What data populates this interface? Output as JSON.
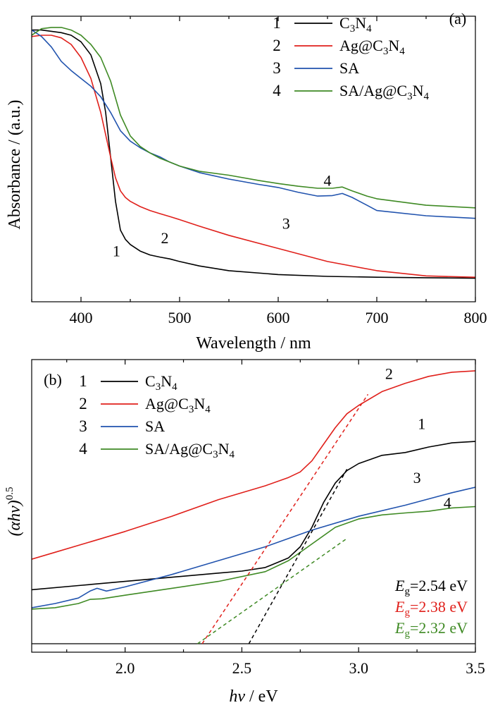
{
  "chart_data": [
    {
      "type": "line",
      "panel_label": "(a)",
      "xlabel": "Wavelength / nm",
      "ylabel": "Absorbance / (a.u.)",
      "xlim": [
        350,
        800
      ],
      "ylim": [
        0,
        1
      ],
      "xticks": [
        400,
        500,
        600,
        700,
        800
      ],
      "yticks_shown": false,
      "legend_position": "top-right",
      "series": [
        {
          "id": "1",
          "name": "C3N4",
          "color": "#000000",
          "x": [
            350,
            360,
            370,
            380,
            390,
            400,
            410,
            420,
            425,
            430,
            435,
            440,
            445,
            450,
            460,
            470,
            480,
            490,
            500,
            520,
            550,
            600,
            650,
            700,
            750,
            800
          ],
          "y": [
            0.985,
            0.985,
            0.98,
            0.975,
            0.965,
            0.94,
            0.89,
            0.78,
            0.67,
            0.5,
            0.33,
            0.22,
            0.185,
            0.165,
            0.14,
            0.125,
            0.117,
            0.11,
            0.1,
            0.083,
            0.065,
            0.05,
            0.043,
            0.04,
            0.038,
            0.036
          ]
        },
        {
          "id": "2",
          "name": "Ag@C3N4",
          "color": "#e0201b",
          "x": [
            350,
            360,
            370,
            380,
            390,
            400,
            410,
            420,
            430,
            435,
            440,
            445,
            450,
            460,
            470,
            480,
            490,
            500,
            520,
            550,
            600,
            650,
            700,
            750,
            800
          ],
          "y": [
            0.96,
            0.965,
            0.965,
            0.955,
            0.93,
            0.88,
            0.8,
            0.67,
            0.5,
            0.42,
            0.37,
            0.345,
            0.33,
            0.31,
            0.295,
            0.283,
            0.272,
            0.26,
            0.235,
            0.2,
            0.15,
            0.1,
            0.065,
            0.045,
            0.04
          ]
        },
        {
          "id": "3",
          "name": "SA",
          "color": "#2153ae",
          "x": [
            350,
            360,
            370,
            380,
            390,
            400,
            410,
            420,
            430,
            440,
            450,
            460,
            470,
            480,
            490,
            500,
            520,
            550,
            580,
            600,
            620,
            640,
            655,
            665,
            675,
            690,
            700,
            750,
            800
          ],
          "y": [
            0.985,
            0.96,
            0.92,
            0.865,
            0.83,
            0.8,
            0.77,
            0.73,
            0.67,
            0.6,
            0.56,
            0.535,
            0.515,
            0.5,
            0.48,
            0.465,
            0.44,
            0.415,
            0.395,
            0.383,
            0.365,
            0.35,
            0.352,
            0.36,
            0.345,
            0.315,
            0.295,
            0.275,
            0.265
          ]
        },
        {
          "id": "4",
          "name": "SA/Ag@C3N4",
          "color": "#3f8a24",
          "x": [
            350,
            360,
            370,
            380,
            390,
            400,
            410,
            420,
            430,
            440,
            450,
            460,
            470,
            480,
            490,
            500,
            520,
            550,
            580,
            600,
            620,
            640,
            655,
            665,
            675,
            690,
            700,
            750,
            800
          ],
          "y": [
            0.965,
            0.99,
            0.995,
            0.995,
            0.985,
            0.965,
            0.93,
            0.88,
            0.79,
            0.66,
            0.58,
            0.54,
            0.515,
            0.495,
            0.48,
            0.465,
            0.445,
            0.43,
            0.41,
            0.398,
            0.388,
            0.38,
            0.38,
            0.385,
            0.37,
            0.35,
            0.34,
            0.315,
            0.305
          ]
        }
      ],
      "curve_labels": [
        {
          "text": "1",
          "x": 436,
          "y": 0.12
        },
        {
          "text": "2",
          "x": 485,
          "y": 0.17
        },
        {
          "text": "3",
          "x": 608,
          "y": 0.225
        },
        {
          "text": "4",
          "x": 650,
          "y": 0.39
        }
      ]
    },
    {
      "type": "line",
      "panel_label": "(b)",
      "xlabel_italic": "hv",
      "xlabel_unit": " / eV",
      "ylabel_italic": "(αhv)",
      "ylabel_sup": "0.5",
      "xlim": [
        1.6,
        3.5
      ],
      "ylim": [
        0,
        1
      ],
      "xticks": [
        2.0,
        2.5,
        3.0,
        3.5
      ],
      "yticks_shown": false,
      "baseline_y": 0.0,
      "legend_position": "top-left",
      "series": [
        {
          "id": "1",
          "name": "C3N4",
          "color": "#000000",
          "x": [
            1.6,
            1.8,
            2.0,
            2.2,
            2.4,
            2.5,
            2.6,
            2.7,
            2.75,
            2.8,
            2.85,
            2.9,
            2.95,
            3.0,
            3.1,
            3.2,
            3.3,
            3.4,
            3.5
          ],
          "y": [
            0.195,
            0.21,
            0.225,
            0.24,
            0.255,
            0.262,
            0.275,
            0.31,
            0.35,
            0.42,
            0.51,
            0.58,
            0.625,
            0.65,
            0.68,
            0.69,
            0.71,
            0.725,
            0.73
          ]
        },
        {
          "id": "2",
          "name": "Ag@C3N4",
          "color": "#e0201b",
          "x": [
            1.6,
            1.7,
            1.8,
            1.9,
            2.0,
            2.2,
            2.4,
            2.6,
            2.7,
            2.75,
            2.8,
            2.85,
            2.9,
            2.95,
            3.0,
            3.1,
            3.2,
            3.3,
            3.4,
            3.5
          ],
          "y": [
            0.305,
            0.33,
            0.355,
            0.38,
            0.405,
            0.46,
            0.52,
            0.57,
            0.6,
            0.62,
            0.66,
            0.72,
            0.78,
            0.83,
            0.86,
            0.91,
            0.94,
            0.965,
            0.98,
            0.985
          ]
        },
        {
          "id": "3",
          "name": "SA",
          "color": "#2153ae",
          "x": [
            1.6,
            1.7,
            1.8,
            1.85,
            1.88,
            1.92,
            2.0,
            2.2,
            2.4,
            2.6,
            2.8,
            3.0,
            3.2,
            3.4,
            3.5
          ],
          "y": [
            0.13,
            0.145,
            0.165,
            0.19,
            0.2,
            0.19,
            0.205,
            0.25,
            0.3,
            0.35,
            0.41,
            0.46,
            0.5,
            0.545,
            0.565
          ]
        },
        {
          "id": "4",
          "name": "SA/Ag@C3N4",
          "color": "#3f8a24",
          "x": [
            1.6,
            1.7,
            1.8,
            1.85,
            1.9,
            2.0,
            2.2,
            2.4,
            2.6,
            2.7,
            2.8,
            2.9,
            3.0,
            3.1,
            3.2,
            3.3,
            3.4,
            3.5
          ],
          "y": [
            0.125,
            0.13,
            0.145,
            0.16,
            0.162,
            0.175,
            0.2,
            0.225,
            0.26,
            0.3,
            0.36,
            0.42,
            0.45,
            0.465,
            0.472,
            0.478,
            0.49,
            0.495
          ]
        }
      ],
      "tangent_lines": [
        {
          "series_id": "1",
          "color": "#000000",
          "x": [
            2.53,
            2.95
          ],
          "y": [
            0.0,
            0.63
          ]
        },
        {
          "series_id": "2",
          "color": "#e0201b",
          "x": [
            2.33,
            3.04
          ],
          "y": [
            0.0,
            0.9
          ]
        },
        {
          "series_id": "4",
          "color": "#3f8a24",
          "x": [
            2.31,
            2.95
          ],
          "y": [
            0.0,
            0.38
          ]
        }
      ],
      "curve_labels": [
        {
          "text": "2",
          "x": 3.13,
          "y": 0.955
        },
        {
          "text": "1",
          "x": 3.27,
          "y": 0.775
        },
        {
          "text": "3",
          "x": 3.25,
          "y": 0.58
        },
        {
          "text": "4",
          "x": 3.38,
          "y": 0.49
        }
      ],
      "annotations": [
        {
          "italic": "E",
          "sub": "g",
          "value": "=2.54 eV",
          "color": "#000000"
        },
        {
          "italic": "E",
          "sub": "g",
          "value": "=2.38 eV",
          "color": "#e0201b"
        },
        {
          "italic": "E",
          "sub": "g",
          "value": "=2.32 eV",
          "color": "#3f8a24"
        }
      ]
    }
  ]
}
